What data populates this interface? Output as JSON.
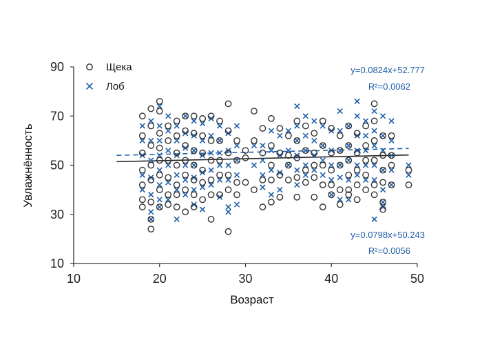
{
  "chart_data": {
    "type": "scatter",
    "xlabel": "Возраст",
    "ylabel": "Увлажнённость",
    "xlim": [
      10,
      50
    ],
    "ylim": [
      10,
      90
    ],
    "xticks": [
      "10",
      "20",
      "30",
      "40",
      "50"
    ],
    "yticks": [
      "10",
      "30",
      "50",
      "70",
      "90"
    ],
    "legend_position": "top-left",
    "series": [
      {
        "name": "Щека",
        "marker": "circle",
        "color": "#333333",
        "trend_equation": "y=0.0798x+50.243",
        "trend_r2": "R²=0.0056",
        "trend": {
          "slope": 0.0798,
          "intercept": 50.243,
          "x_range": [
            15,
            49
          ],
          "style": "solid"
        },
        "points": [
          [
            18,
            70
          ],
          [
            18,
            62
          ],
          [
            18,
            55
          ],
          [
            18,
            48
          ],
          [
            18,
            42
          ],
          [
            18,
            36
          ],
          [
            18,
            33
          ],
          [
            19,
            73
          ],
          [
            19,
            66
          ],
          [
            19,
            58
          ],
          [
            19,
            50
          ],
          [
            19,
            44
          ],
          [
            19,
            35
          ],
          [
            19,
            28
          ],
          [
            19,
            24
          ],
          [
            20,
            76
          ],
          [
            20,
            72
          ],
          [
            20,
            63
          ],
          [
            20,
            57
          ],
          [
            20,
            52
          ],
          [
            20,
            46
          ],
          [
            20,
            40
          ],
          [
            20,
            33
          ],
          [
            21,
            66
          ],
          [
            21,
            60
          ],
          [
            21,
            52
          ],
          [
            21,
            45
          ],
          [
            21,
            38
          ],
          [
            21,
            34
          ],
          [
            22,
            68
          ],
          [
            22,
            62
          ],
          [
            22,
            55
          ],
          [
            22,
            50
          ],
          [
            22,
            42
          ],
          [
            22,
            38
          ],
          [
            22,
            33
          ],
          [
            23,
            70
          ],
          [
            23,
            64
          ],
          [
            23,
            58
          ],
          [
            23,
            52
          ],
          [
            23,
            46
          ],
          [
            23,
            40
          ],
          [
            23,
            31
          ],
          [
            24,
            70
          ],
          [
            24,
            63
          ],
          [
            24,
            56
          ],
          [
            24,
            50
          ],
          [
            24,
            44
          ],
          [
            24,
            38
          ],
          [
            24,
            33
          ],
          [
            25,
            69
          ],
          [
            25,
            62
          ],
          [
            25,
            55
          ],
          [
            25,
            48
          ],
          [
            25,
            43
          ],
          [
            25,
            36
          ],
          [
            26,
            70
          ],
          [
            26,
            60
          ],
          [
            26,
            52
          ],
          [
            26,
            44
          ],
          [
            26,
            38
          ],
          [
            26,
            28
          ],
          [
            27,
            68
          ],
          [
            27,
            60
          ],
          [
            27,
            52
          ],
          [
            27,
            46
          ],
          [
            27,
            38
          ],
          [
            28,
            75
          ],
          [
            28,
            64
          ],
          [
            28,
            55
          ],
          [
            28,
            46
          ],
          [
            28,
            40
          ],
          [
            28,
            23
          ],
          [
            29,
            60
          ],
          [
            29,
            52
          ],
          [
            29,
            43
          ],
          [
            29,
            38
          ],
          [
            30,
            56
          ],
          [
            30,
            53
          ],
          [
            30,
            43
          ],
          [
            31,
            72
          ],
          [
            31,
            60
          ],
          [
            31,
            40
          ],
          [
            32,
            65
          ],
          [
            32,
            55
          ],
          [
            32,
            44
          ],
          [
            32,
            33
          ],
          [
            33,
            69
          ],
          [
            33,
            58
          ],
          [
            33,
            50
          ],
          [
            33,
            44
          ],
          [
            33,
            35
          ],
          [
            34,
            65
          ],
          [
            34,
            55
          ],
          [
            34,
            46
          ],
          [
            34,
            37
          ],
          [
            35,
            62
          ],
          [
            35,
            54
          ],
          [
            35,
            50
          ],
          [
            35,
            44
          ],
          [
            36,
            68
          ],
          [
            36,
            60
          ],
          [
            36,
            53
          ],
          [
            36,
            45
          ],
          [
            36,
            37
          ],
          [
            37,
            66
          ],
          [
            37,
            56
          ],
          [
            37,
            48
          ],
          [
            37,
            43
          ],
          [
            38,
            63
          ],
          [
            38,
            55
          ],
          [
            38,
            50
          ],
          [
            38,
            45
          ],
          [
            38,
            37
          ],
          [
            39,
            68
          ],
          [
            39,
            58
          ],
          [
            39,
            50
          ],
          [
            39,
            42
          ],
          [
            39,
            33
          ],
          [
            40,
            65
          ],
          [
            40,
            55
          ],
          [
            40,
            48
          ],
          [
            40,
            42
          ],
          [
            40,
            38
          ],
          [
            41,
            62
          ],
          [
            41,
            56
          ],
          [
            41,
            50
          ],
          [
            41,
            40
          ],
          [
            41,
            34
          ],
          [
            42,
            66
          ],
          [
            42,
            58
          ],
          [
            42,
            52
          ],
          [
            42,
            46
          ],
          [
            42,
            40
          ],
          [
            42,
            38
          ],
          [
            43,
            63
          ],
          [
            43,
            55
          ],
          [
            43,
            48
          ],
          [
            43,
            42
          ],
          [
            43,
            36
          ],
          [
            44,
            66
          ],
          [
            44,
            58
          ],
          [
            44,
            52
          ],
          [
            44,
            46
          ],
          [
            44,
            40
          ],
          [
            45,
            75
          ],
          [
            45,
            68
          ],
          [
            45,
            60
          ],
          [
            45,
            52
          ],
          [
            45,
            42
          ],
          [
            45,
            38
          ],
          [
            46,
            62
          ],
          [
            46,
            54
          ],
          [
            46,
            48
          ],
          [
            46,
            43
          ],
          [
            46,
            35
          ],
          [
            46,
            32
          ],
          [
            47,
            62
          ],
          [
            47,
            54
          ],
          [
            47,
            50
          ],
          [
            47,
            42
          ],
          [
            49,
            48
          ],
          [
            49,
            42
          ]
        ]
      },
      {
        "name": "Лоб",
        "marker": "x",
        "color": "#1f5ea8",
        "trend_equation": "y=0.0824x+52.777",
        "trend_r2": "R²=0.0062",
        "trend": {
          "slope": 0.0824,
          "intercept": 52.777,
          "x_range": [
            15,
            49
          ],
          "style": "dashed"
        },
        "points": [
          [
            18,
            66
          ],
          [
            18,
            60
          ],
          [
            18,
            54
          ],
          [
            18,
            46
          ],
          [
            18,
            40
          ],
          [
            19,
            68
          ],
          [
            19,
            60
          ],
          [
            19,
            52
          ],
          [
            19,
            45
          ],
          [
            19,
            38
          ],
          [
            19,
            31
          ],
          [
            19,
            28
          ],
          [
            20,
            74
          ],
          [
            20,
            66
          ],
          [
            20,
            60
          ],
          [
            20,
            54
          ],
          [
            20,
            48
          ],
          [
            20,
            42
          ],
          [
            20,
            36
          ],
          [
            20,
            33
          ],
          [
            21,
            70
          ],
          [
            21,
            64
          ],
          [
            21,
            56
          ],
          [
            21,
            50
          ],
          [
            21,
            43
          ],
          [
            21,
            36
          ],
          [
            22,
            66
          ],
          [
            22,
            60
          ],
          [
            22,
            54
          ],
          [
            22,
            46
          ],
          [
            22,
            40
          ],
          [
            22,
            28
          ],
          [
            23,
            70
          ],
          [
            23,
            63
          ],
          [
            23,
            57
          ],
          [
            23,
            50
          ],
          [
            23,
            44
          ],
          [
            23,
            38
          ],
          [
            24,
            68
          ],
          [
            24,
            62
          ],
          [
            24,
            56
          ],
          [
            24,
            50
          ],
          [
            24,
            45
          ],
          [
            24,
            40
          ],
          [
            24,
            34
          ],
          [
            25,
            67
          ],
          [
            25,
            60
          ],
          [
            25,
            54
          ],
          [
            25,
            47
          ],
          [
            25,
            41
          ],
          [
            25,
            32
          ],
          [
            26,
            69
          ],
          [
            26,
            62
          ],
          [
            26,
            55
          ],
          [
            26,
            48
          ],
          [
            26,
            42
          ],
          [
            27,
            66
          ],
          [
            27,
            60
          ],
          [
            27,
            55
          ],
          [
            27,
            50
          ],
          [
            27,
            44
          ],
          [
            27,
            37
          ],
          [
            28,
            63
          ],
          [
            28,
            56
          ],
          [
            28,
            50
          ],
          [
            28,
            44
          ],
          [
            28,
            33
          ],
          [
            28,
            31
          ],
          [
            29,
            66
          ],
          [
            29,
            58
          ],
          [
            29,
            52
          ],
          [
            29,
            46
          ],
          [
            29,
            34
          ],
          [
            31,
            58
          ],
          [
            31,
            50
          ],
          [
            32,
            58
          ],
          [
            32,
            52
          ],
          [
            32,
            46
          ],
          [
            32,
            41
          ],
          [
            33,
            64
          ],
          [
            33,
            56
          ],
          [
            33,
            48
          ],
          [
            33,
            38
          ],
          [
            34,
            62
          ],
          [
            34,
            54
          ],
          [
            34,
            47
          ],
          [
            34,
            40
          ],
          [
            35,
            64
          ],
          [
            35,
            56
          ],
          [
            35,
            50
          ],
          [
            36,
            74
          ],
          [
            36,
            66
          ],
          [
            36,
            60
          ],
          [
            36,
            54
          ],
          [
            36,
            48
          ],
          [
            36,
            42
          ],
          [
            37,
            70
          ],
          [
            37,
            62
          ],
          [
            37,
            56
          ],
          [
            37,
            50
          ],
          [
            37,
            46
          ],
          [
            38,
            68
          ],
          [
            38,
            60
          ],
          [
            38,
            54
          ],
          [
            38,
            48
          ],
          [
            39,
            66
          ],
          [
            39,
            58
          ],
          [
            39,
            52
          ],
          [
            39,
            46
          ],
          [
            40,
            64
          ],
          [
            40,
            56
          ],
          [
            40,
            50
          ],
          [
            40,
            44
          ],
          [
            40,
            38
          ],
          [
            41,
            72
          ],
          [
            41,
            64
          ],
          [
            41,
            56
          ],
          [
            41,
            50
          ],
          [
            41,
            45
          ],
          [
            41,
            36
          ],
          [
            42,
            66
          ],
          [
            42,
            58
          ],
          [
            42,
            52
          ],
          [
            42,
            44
          ],
          [
            42,
            36
          ],
          [
            43,
            76
          ],
          [
            43,
            70
          ],
          [
            43,
            62
          ],
          [
            43,
            56
          ],
          [
            43,
            50
          ],
          [
            43,
            46
          ],
          [
            44,
            68
          ],
          [
            44,
            62
          ],
          [
            44,
            56
          ],
          [
            44,
            50
          ],
          [
            44,
            44
          ],
          [
            45,
            72
          ],
          [
            45,
            64
          ],
          [
            45,
            58
          ],
          [
            45,
            50
          ],
          [
            45,
            44
          ],
          [
            45,
            28
          ],
          [
            46,
            70
          ],
          [
            46,
            62
          ],
          [
            46,
            56
          ],
          [
            46,
            48
          ],
          [
            46,
            40
          ],
          [
            46,
            35
          ],
          [
            46,
            33
          ],
          [
            47,
            68
          ],
          [
            47,
            60
          ],
          [
            47,
            54
          ],
          [
            47,
            48
          ],
          [
            47,
            42
          ],
          [
            49,
            50
          ],
          [
            49,
            46
          ]
        ]
      }
    ]
  }
}
